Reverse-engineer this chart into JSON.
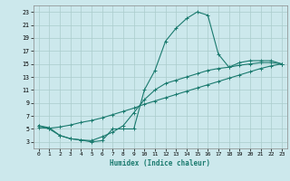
{
  "title": "",
  "xlabel": "Humidex (Indice chaleur)",
  "bg_color": "#cce8ec",
  "grid_color": "#aacccc",
  "line_color": "#1a7a6e",
  "xlim": [
    -0.5,
    23.5
  ],
  "ylim": [
    2,
    24
  ],
  "xticks": [
    0,
    1,
    2,
    3,
    4,
    5,
    6,
    7,
    8,
    9,
    10,
    11,
    12,
    13,
    14,
    15,
    16,
    17,
    18,
    19,
    20,
    21,
    22,
    23
  ],
  "yticks": [
    3,
    5,
    7,
    9,
    11,
    13,
    15,
    17,
    19,
    21,
    23
  ],
  "curve1_x": [
    0,
    1,
    2,
    3,
    4,
    5,
    6,
    7,
    8,
    9,
    10,
    11,
    12,
    13,
    14,
    15,
    16,
    17,
    18,
    19,
    20,
    21,
    22,
    23
  ],
  "curve1_y": [
    5.5,
    5.0,
    4.0,
    3.5,
    3.3,
    3.0,
    3.2,
    5.0,
    5.0,
    5.0,
    11.0,
    14.0,
    18.5,
    20.5,
    22.0,
    23.0,
    22.5,
    16.5,
    14.5,
    15.2,
    15.5,
    15.5,
    15.5,
    15.0
  ],
  "curve2_x": [
    0,
    1,
    2,
    3,
    4,
    5,
    6,
    7,
    8,
    9,
    10,
    11,
    12,
    13,
    14,
    15,
    16,
    17,
    18,
    19,
    20,
    21,
    22,
    23
  ],
  "curve2_y": [
    5.2,
    5.1,
    5.3,
    5.6,
    6.0,
    6.3,
    6.7,
    7.2,
    7.7,
    8.2,
    8.8,
    9.3,
    9.8,
    10.3,
    10.8,
    11.3,
    11.8,
    12.3,
    12.8,
    13.3,
    13.8,
    14.3,
    14.7,
    15.0
  ],
  "curve3_x": [
    0,
    1,
    2,
    3,
    4,
    5,
    6,
    7,
    8,
    9,
    10,
    11,
    12,
    13,
    14,
    15,
    16,
    17,
    18,
    19,
    20,
    21,
    22,
    23
  ],
  "curve3_y": [
    5.5,
    5.2,
    4.0,
    3.5,
    3.3,
    3.2,
    3.8,
    4.5,
    5.5,
    7.5,
    9.5,
    11.0,
    12.0,
    12.5,
    13.0,
    13.5,
    14.0,
    14.3,
    14.5,
    14.8,
    15.0,
    15.2,
    15.2,
    15.0
  ]
}
